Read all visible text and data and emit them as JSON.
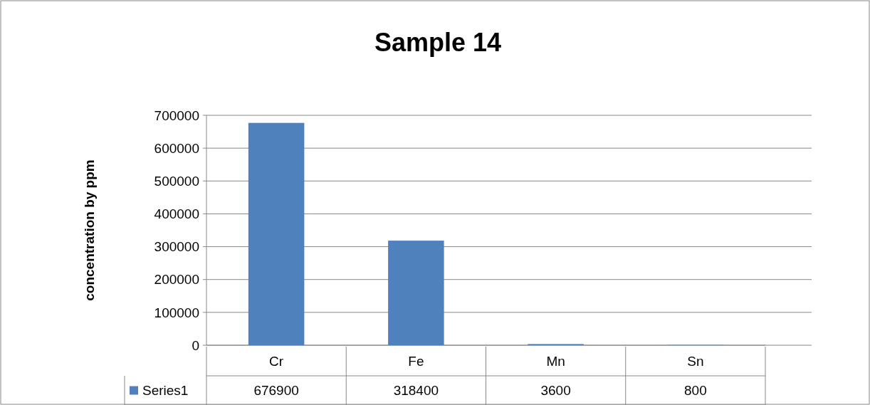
{
  "chart_data": {
    "type": "bar",
    "title": "Sample 14",
    "ylabel": "concentration by ppm",
    "categories": [
      "Cr",
      "Fe",
      "Mn",
      "Sn"
    ],
    "series": [
      {
        "name": "Series1",
        "color": "#4f81bd",
        "values": [
          676900,
          318400,
          3600,
          800
        ]
      }
    ],
    "ylim": [
      0,
      700000
    ],
    "yticks": [
      0,
      100000,
      200000,
      300000,
      400000,
      500000,
      600000,
      700000
    ],
    "grid": "y",
    "data_labels": true
  }
}
